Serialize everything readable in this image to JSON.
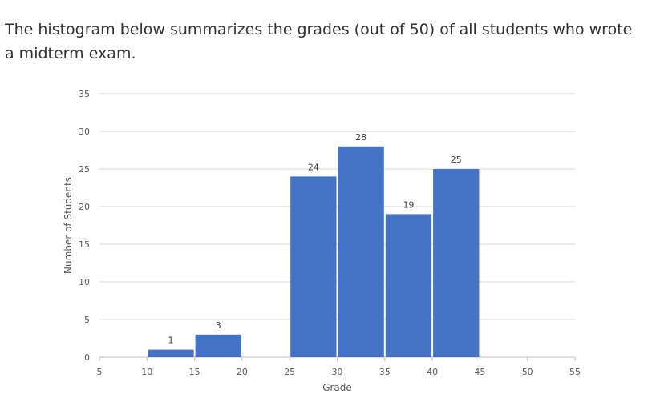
{
  "intro_text": "The histogram below summarizes the grades (out of 50) of all students who wrote a midterm exam.",
  "colors": {
    "bar": "#4472C4",
    "grid": "#D9D9D9",
    "axis": "#BFBFBF"
  },
  "chart_data": {
    "type": "bar",
    "title": "",
    "xlabel": "Grade",
    "ylabel": "Number of Students",
    "xlim": [
      5,
      55
    ],
    "ylim": [
      0,
      35
    ],
    "x_ticks": [
      5,
      10,
      15,
      20,
      25,
      30,
      35,
      40,
      45,
      50,
      55
    ],
    "y_ticks": [
      0,
      5,
      10,
      15,
      20,
      25,
      30,
      35
    ],
    "grid": true,
    "legend": "none",
    "bins": [
      {
        "start": 10,
        "end": 15,
        "value": 1
      },
      {
        "start": 15,
        "end": 20,
        "value": 3
      },
      {
        "start": 25,
        "end": 30,
        "value": 24
      },
      {
        "start": 30,
        "end": 35,
        "value": 28
      },
      {
        "start": 35,
        "end": 40,
        "value": 19
      },
      {
        "start": 40,
        "end": 45,
        "value": 25
      }
    ]
  }
}
